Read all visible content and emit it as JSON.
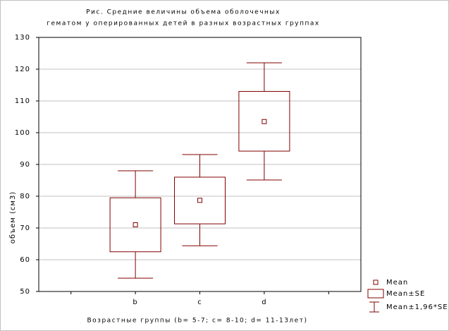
{
  "chart_data": {
    "type": "box",
    "title": [
      "Рис. Средние величины объема оболочечных",
      "гематом у оперированных детей в разных возрастных группах"
    ],
    "x_label": "Возрастные группы (b= 5-7; c= 8-10; d= 11-13лет)",
    "y_label": "объем (см3)",
    "categories": [
      null,
      "b",
      "c",
      "d",
      null
    ],
    "mean": [
      null,
      71,
      78.7,
      103.5,
      null
    ],
    "se_low": [
      null,
      62.5,
      71.3,
      94.2,
      null
    ],
    "se_high": [
      null,
      79.5,
      86,
      113,
      null
    ],
    "ci_low": [
      null,
      54.2,
      64.4,
      85.1,
      null
    ],
    "ci_high": [
      null,
      88,
      93.1,
      122,
      null
    ],
    "color": "#800000",
    "legend": [
      "Mean",
      "Mean±SE",
      "Mean±1,96*SE"
    ],
    "ylim": [
      50,
      130
    ],
    "yticks": [
      50,
      60,
      70,
      80,
      90,
      100,
      110,
      120,
      130
    ],
    "grid": true
  }
}
